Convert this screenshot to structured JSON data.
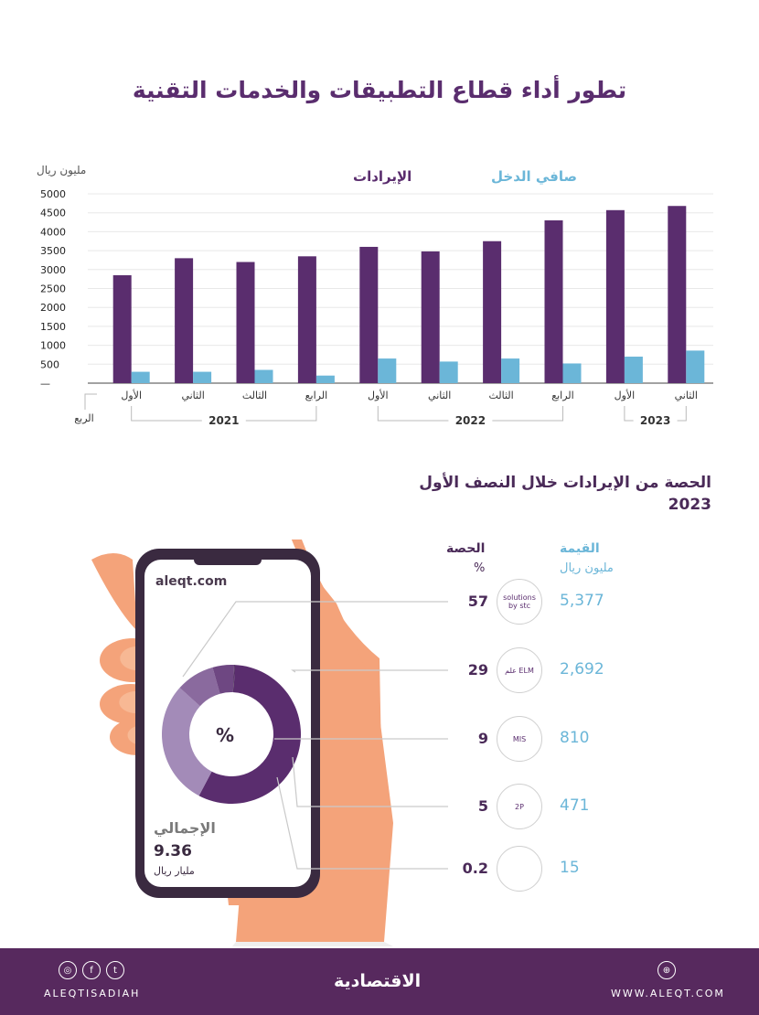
{
  "title": "تطور أداء قطاع التطبيقات والخدمات التقنية",
  "chart_data": [
    {
      "type": "bar",
      "ylabel": "مليون ريال",
      "ylim": [
        0,
        5000
      ],
      "y_ticks": [
        "5000",
        "4500",
        "4000",
        "3500",
        "3000",
        "2500",
        "2000",
        "1500",
        "1000",
        "500",
        "—"
      ],
      "legend": [
        "الإيرادات",
        "صافي الدخل"
      ],
      "x_axis_name": "الربع",
      "categories": [
        "الأول",
        "الثاني",
        "الثالث",
        "الرابع",
        "الأول",
        "الثاني",
        "الثالث",
        "الرابع",
        "الأول",
        "الثاني"
      ],
      "years": [
        "2021",
        "2022",
        "2023"
      ],
      "series": [
        {
          "name": "الإيرادات",
          "color": "#5a2d6e",
          "values": [
            2850,
            3300,
            3200,
            3350,
            3600,
            3480,
            3750,
            4300,
            4570,
            4680
          ]
        },
        {
          "name": "صافي الدخل",
          "color": "#6bb6d8",
          "values": [
            300,
            300,
            350,
            200,
            650,
            570,
            650,
            520,
            700,
            860
          ]
        }
      ]
    },
    {
      "type": "pie",
      "title": "الحصة من الإيرادات خلال النصف الأول 2023",
      "center_label": "%",
      "share_header": "الحصة",
      "share_unit": "%",
      "value_header": "القيمة",
      "value_unit": "مليون ريال",
      "total_label": "الإجمالي",
      "total_value": "9.36",
      "total_unit": "مليار ريال",
      "rows": [
        {
          "share": "57",
          "value": "5,377",
          "pct": 57,
          "logo": "solutions by stc",
          "color": "#5a2d6e"
        },
        {
          "share": "29",
          "value": "2,692",
          "pct": 29,
          "logo": "علم ELM",
          "color": "#a38bb8"
        },
        {
          "share": "9",
          "value": "810",
          "pct": 9,
          "logo": "MIS",
          "color": "#8a6a9e"
        },
        {
          "share": "5",
          "value": "471",
          "pct": 5,
          "logo": "2P",
          "color": "#6e4782"
        },
        {
          "share": "0.2",
          "value": "15",
          "pct": 0.2,
          "logo": "",
          "color": "#4a2a58"
        }
      ]
    }
  ],
  "phone": {
    "url": "aleqt.com"
  },
  "footer": {
    "left": "ALEQTISADIAH",
    "brand": "الاقتصادية",
    "right": "WWW.ALEQT.COM"
  }
}
